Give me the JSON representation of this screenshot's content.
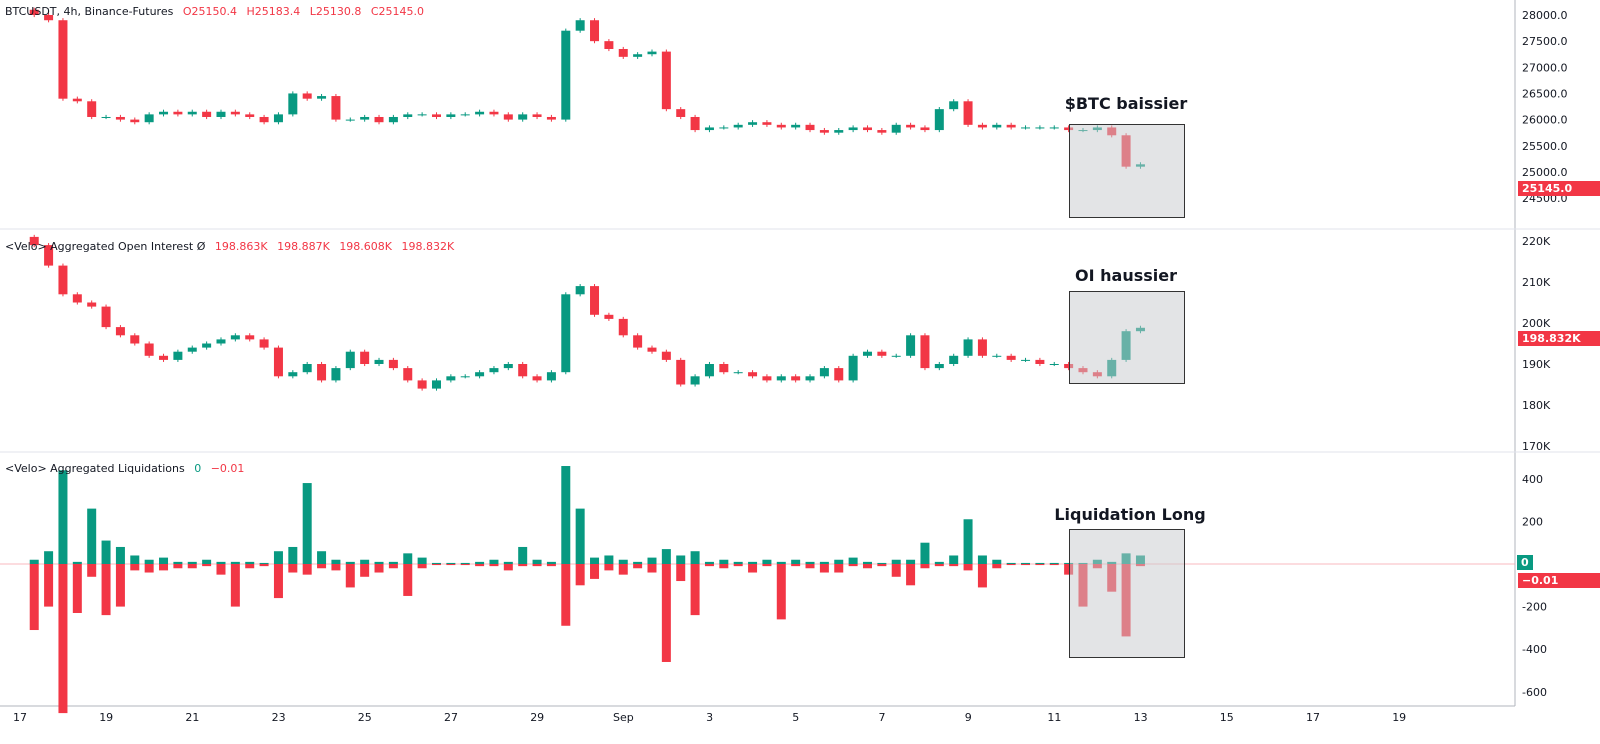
{
  "colors": {
    "up": "#089981",
    "down": "#f23645",
    "box": "#d7d8db"
  },
  "legend_price": {
    "symbol": "BTCUSDT, 4h, Binance-Futures",
    "o": "O25150.4",
    "h": "H25183.4",
    "l": "L25130.8",
    "c": "C25145.0"
  },
  "legend_oi": {
    "label": "<Velo> Aggregated Open Interest  Ø",
    "v1": "198.863K",
    "v2": "198.887K",
    "v3": "198.608K",
    "v4": "198.832K"
  },
  "legend_liq": {
    "label": "<Velo> Aggregated Liquidations",
    "v1": "0",
    "v2": "−0.01"
  },
  "annotations": {
    "btc": "$BTC baissier",
    "oi": "OI haussier",
    "liq": "Liquidation Long"
  },
  "tags": {
    "price": "25145.0",
    "oi": "198.832K",
    "liq_pos": "0",
    "liq_neg": "−0.01"
  },
  "chart_data": [
    {
      "type": "candlestick",
      "name": "BTCUSDT 4h",
      "start_date": "Aug 17",
      "ylim": [
        24500,
        28000
      ],
      "y_ticks": [
        "28000.0",
        "27500.0",
        "27000.0",
        "26500.0",
        "26000.0",
        "25500.0",
        "25000.0",
        "24500.0"
      ],
      "closes": [
        28000,
        27900,
        26400,
        26350,
        26050,
        26050,
        26000,
        25950,
        26100,
        26150,
        26100,
        26150,
        26050,
        26150,
        26100,
        26050,
        25950,
        26100,
        26500,
        26400,
        26450,
        26000,
        26000,
        26050,
        25950,
        26050,
        26100,
        26100,
        26050,
        26100,
        26100,
        26150,
        26100,
        26000,
        26100,
        26050,
        26000,
        27700,
        27900,
        27500,
        27350,
        27200,
        27250,
        27300,
        26200,
        26050,
        25800,
        25850,
        25850,
        25900,
        25950,
        25900,
        25850,
        25900,
        25800,
        25750,
        25800,
        25850,
        25800,
        25750,
        25900,
        25850,
        25800,
        26200,
        26350,
        25900,
        25850,
        25900,
        25850,
        25850,
        25850,
        25850,
        25800,
        25800,
        25850,
        25700,
        25100,
        25145
      ]
    },
    {
      "type": "candlestick",
      "name": "<Velo> Aggregated Open Interest",
      "unit": "K",
      "ylim": [
        170,
        220
      ],
      "y_ticks": [
        "220K",
        "210K",
        "200K",
        "190K",
        "180K",
        "170K"
      ],
      "closes": [
        219,
        214,
        207,
        205,
        204,
        199,
        197,
        195,
        192,
        191,
        193,
        194,
        195,
        196,
        197,
        196,
        194,
        187,
        188,
        190,
        186,
        189,
        193,
        190,
        191,
        189,
        186,
        184,
        186,
        187,
        187,
        188,
        189,
        190,
        187,
        186,
        188,
        207,
        209,
        202,
        201,
        197,
        194,
        193,
        191,
        185,
        187,
        190,
        188,
        188,
        187,
        186,
        187,
        186,
        187,
        189,
        186,
        192,
        193,
        192,
        192,
        197,
        189,
        190,
        192,
        196,
        192,
        192,
        191,
        191,
        190,
        190,
        189,
        188,
        187,
        191,
        198,
        198.832
      ]
    },
    {
      "type": "bar",
      "name": "<Velo> Aggregated Liquidations",
      "ylim": [
        -650,
        450
      ],
      "y_ticks": [
        "400",
        "200",
        "0",
        "-200",
        "-400",
        "-600"
      ],
      "short_liq": [
        20,
        60,
        440,
        10,
        260,
        110,
        80,
        40,
        20,
        30,
        10,
        10,
        20,
        10,
        10,
        10,
        5,
        60,
        80,
        380,
        60,
        20,
        10,
        20,
        10,
        10,
        50,
        30,
        5,
        5,
        5,
        10,
        20,
        10,
        80,
        20,
        10,
        460,
        260,
        30,
        40,
        20,
        10,
        30,
        70,
        40,
        60,
        10,
        20,
        10,
        10,
        20,
        10,
        20,
        10,
        10,
        20,
        30,
        10,
        5,
        20,
        20,
        100,
        10,
        40,
        210,
        40,
        20,
        5,
        5,
        5,
        5,
        5,
        5,
        20,
        10,
        50,
        40
      ],
      "long_liq": [
        -310,
        -200,
        -700,
        -230,
        -60,
        -240,
        -200,
        -30,
        -40,
        -30,
        -20,
        -20,
        -10,
        -50,
        -200,
        -20,
        -10,
        -160,
        -40,
        -50,
        -20,
        -30,
        -110,
        -60,
        -40,
        -20,
        -150,
        -20,
        -5,
        -5,
        -5,
        -10,
        -10,
        -30,
        -10,
        -10,
        -10,
        -290,
        -100,
        -70,
        -30,
        -50,
        -20,
        -40,
        -460,
        -80,
        -240,
        -10,
        -20,
        -10,
        -40,
        -10,
        -260,
        -10,
        -20,
        -40,
        -40,
        -10,
        -20,
        -10,
        -60,
        -100,
        -20,
        -10,
        -10,
        -30,
        -110,
        -20,
        -5,
        -5,
        -5,
        -5,
        -50,
        -200,
        -20,
        -130,
        -340,
        -10
      ]
    }
  ],
  "x_ticks": [
    "17",
    "19",
    "21",
    "23",
    "25",
    "27",
    "29",
    "Sep",
    "3",
    "5",
    "7",
    "9",
    "11",
    "13",
    "15",
    "17",
    "19"
  ]
}
